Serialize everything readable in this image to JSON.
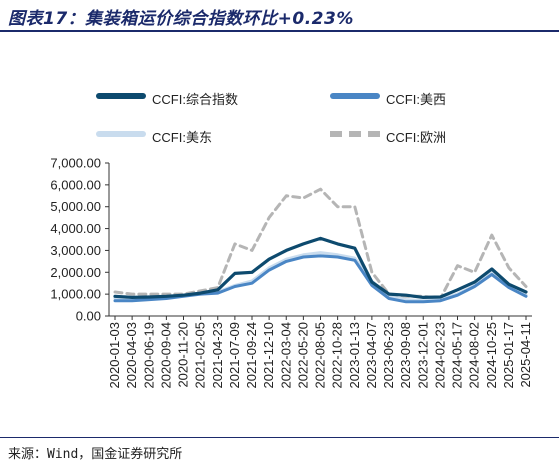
{
  "header": {
    "title": "图表17：集装箱运价综合指数环比+0.23%"
  },
  "footer": {
    "source": "来源：Wind，国金证券研究所"
  },
  "colors": {
    "title": "#1b2a6b",
    "series_composite": "#0d4a6e",
    "series_us_west": "#4a86c5",
    "series_us_east": "#c9dcee",
    "series_europe": "#b5b5b5"
  },
  "chart_data": {
    "type": "line",
    "title": "",
    "xlabel": "",
    "ylabel": "",
    "ylim": [
      0,
      7000
    ],
    "yticks": [
      "7,000.00",
      "6,000.00",
      "5,000.00",
      "4,000.00",
      "3,000.00",
      "2,000.00",
      "1,000.00",
      "0.00"
    ],
    "ytick_values": [
      7000,
      6000,
      5000,
      4000,
      3000,
      2000,
      1000,
      0
    ],
    "xticks": [
      "2020-01-03",
      "2020-04-03",
      "2020-06-19",
      "2020-09-04",
      "2020-11-20",
      "2021-02-05",
      "2021-04-23",
      "2021-07-09",
      "2021-09-24",
      "2021-12-10",
      "2022-03-04",
      "2022-05-20",
      "2022-08-05",
      "2022-10-28",
      "2023-01-13",
      "2023-04-07",
      "2023-06-23",
      "2023-09-08",
      "2023-12-01",
      "2024-02-23",
      "2024-05-17",
      "2024-08-02",
      "2024-10-25",
      "2025-01-17",
      "2025-04-11"
    ],
    "legend_position": "top",
    "grid": false,
    "series": [
      {
        "name": "CCFI:综合指数",
        "style": "solid",
        "values": [
          900,
          850,
          870,
          900,
          950,
          1050,
          1200,
          1950,
          2000,
          2600,
          3000,
          3300,
          3550,
          3300,
          3100,
          1550,
          1000,
          950,
          850,
          870,
          1200,
          1550,
          2150,
          1450,
          1100
        ]
      },
      {
        "name": "CCFI:美西",
        "style": "solid",
        "values": [
          700,
          700,
          750,
          800,
          900,
          1000,
          1050,
          1350,
          1500,
          2100,
          2500,
          2700,
          2750,
          2700,
          2550,
          1400,
          800,
          650,
          650,
          700,
          950,
          1350,
          1900,
          1300,
          900
        ]
      },
      {
        "name": "CCFI:美东",
        "style": "solid",
        "values": [
          800,
          800,
          850,
          850,
          950,
          1050,
          1100,
          1400,
          1600,
          2200,
          2600,
          2800,
          2900,
          2800,
          2650,
          1600,
          900,
          750,
          700,
          750,
          1000,
          1400,
          2050,
          1350,
          950
        ]
      },
      {
        "name": "CCFI:欧洲",
        "style": "dashed",
        "values": [
          1100,
          1000,
          1000,
          1000,
          1000,
          1150,
          1300,
          3300,
          3000,
          4500,
          5500,
          5400,
          5800,
          5000,
          5000,
          2000,
          1000,
          900,
          900,
          800,
          2300,
          2000,
          3700,
          2200,
          1350
        ]
      }
    ]
  }
}
